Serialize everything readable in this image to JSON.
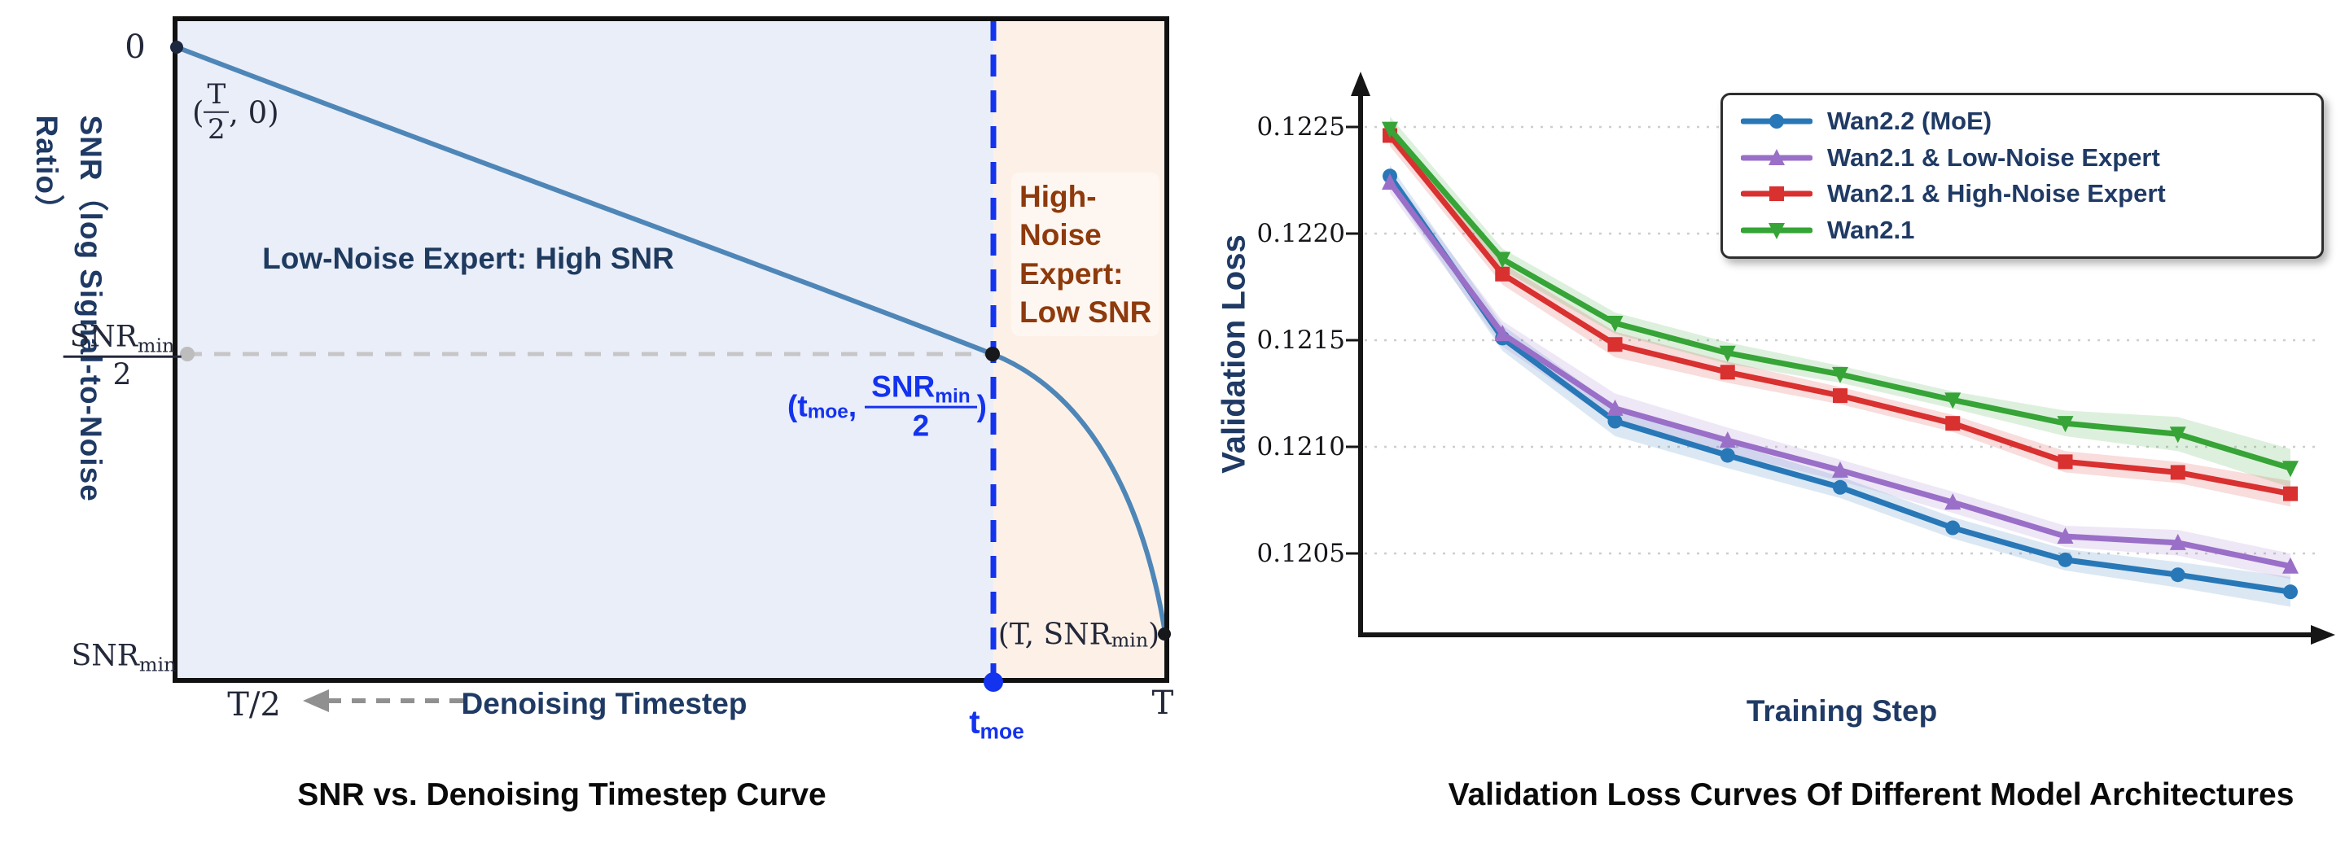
{
  "left_figure": {
    "caption": "SNR vs. Denoising Timestep Curve",
    "y_axis_label": "SNR（log Signal-to-Noise Ratio）",
    "x_axis_label": "Denoising Timestep",
    "regions": {
      "low_noise_label": "Low-Noise Expert: High SNR",
      "high_noise_lines": [
        "High-",
        "Noise",
        "Expert:",
        "Low SNR"
      ]
    },
    "ticks": {
      "y_zero": "0",
      "y_mid": {
        "num_base": "SNR",
        "num_sub": "min",
        "den": "2"
      },
      "y_bottom": {
        "base": "SNR",
        "sub": "min"
      },
      "x_left": "T/2",
      "x_moe": {
        "base": "t",
        "sub": "moe"
      },
      "x_right": "T"
    },
    "point_labels": {
      "start": {
        "open": "(",
        "num": "T",
        "den": "2",
        "rest": ", 0)"
      },
      "moe": {
        "pre": "(t",
        "sub": "moe",
        "comma": ",",
        "num_base": "SNR",
        "num_sub": "min",
        "den": "2",
        "close": ")"
      },
      "end": {
        "pre": "(T, SNR",
        "sub": "min",
        "close": ")"
      }
    },
    "colors": {
      "curve": "#4e86b8",
      "low_noise_region": "#eaeef8",
      "high_noise_region": "#fdf1e7",
      "divider_blue": "#1433ee",
      "gray_dash": "#c6c6c6",
      "navy_text": "#1f3a64",
      "brown_text": "#8e3a0c",
      "frame": "#111111"
    }
  },
  "right_figure": {
    "caption": "Validation Loss Curves Of Different Model Architectures",
    "xlabel": "Training Step",
    "ylabel": "Validation Loss"
  },
  "chart_data": {
    "type": "line",
    "title": "Validation Loss Curves Of Different Model Architectures",
    "xlabel": "Training Step",
    "ylabel": "Validation Loss",
    "x": [
      1,
      2,
      3,
      4,
      5,
      6,
      7,
      8,
      9
    ],
    "ylim": [
      0.1201,
      0.1227
    ],
    "yticks": [
      0.1225,
      0.122,
      0.1215,
      0.121,
      0.1205
    ],
    "ytick_labels": [
      "0.1225",
      "0.1220",
      "0.1215",
      "0.1210",
      "0.1205"
    ],
    "xtick_labels": [],
    "grid": "horizontal-dashed",
    "legend_position": "upper-right",
    "series": [
      {
        "name": "Wan2.2 (MoE)",
        "color": "#2878b8",
        "marker": "circle",
        "values": [
          0.12227,
          0.12151,
          0.12112,
          0.12096,
          0.12081,
          0.12062,
          0.12047,
          0.1204,
          0.12032
        ],
        "band": [
          5e-05,
          6e-05,
          7e-05,
          6e-05,
          5e-05,
          5e-05,
          5e-05,
          6e-05,
          7e-05
        ]
      },
      {
        "name": "Wan2.1 & Low-Noise Expert",
        "color": "#9a6fc8",
        "marker": "triangle-up",
        "values": [
          0.12224,
          0.12153,
          0.12118,
          0.12103,
          0.12089,
          0.12074,
          0.12058,
          0.12055,
          0.12044
        ],
        "band": [
          5e-05,
          6e-05,
          7e-05,
          6e-05,
          5e-05,
          5e-05,
          5e-05,
          6e-05,
          6e-05
        ]
      },
      {
        "name": "Wan2.1 & High-Noise Expert",
        "color": "#d93030",
        "marker": "square",
        "values": [
          0.12246,
          0.12181,
          0.12148,
          0.12135,
          0.12124,
          0.12111,
          0.12093,
          0.12088,
          0.12078
        ],
        "band": [
          5e-05,
          5e-05,
          6e-05,
          5e-05,
          4e-05,
          4e-05,
          5e-05,
          5e-05,
          6e-05
        ]
      },
      {
        "name": "Wan2.1",
        "color": "#36a436",
        "marker": "triangle-down",
        "values": [
          0.12249,
          0.12188,
          0.12158,
          0.12144,
          0.12134,
          0.12122,
          0.12111,
          0.12106,
          0.1209
        ],
        "band": [
          6e-05,
          5e-05,
          5e-05,
          5e-05,
          4e-05,
          4e-05,
          6e-05,
          8e-05,
          9e-05
        ]
      }
    ]
  }
}
